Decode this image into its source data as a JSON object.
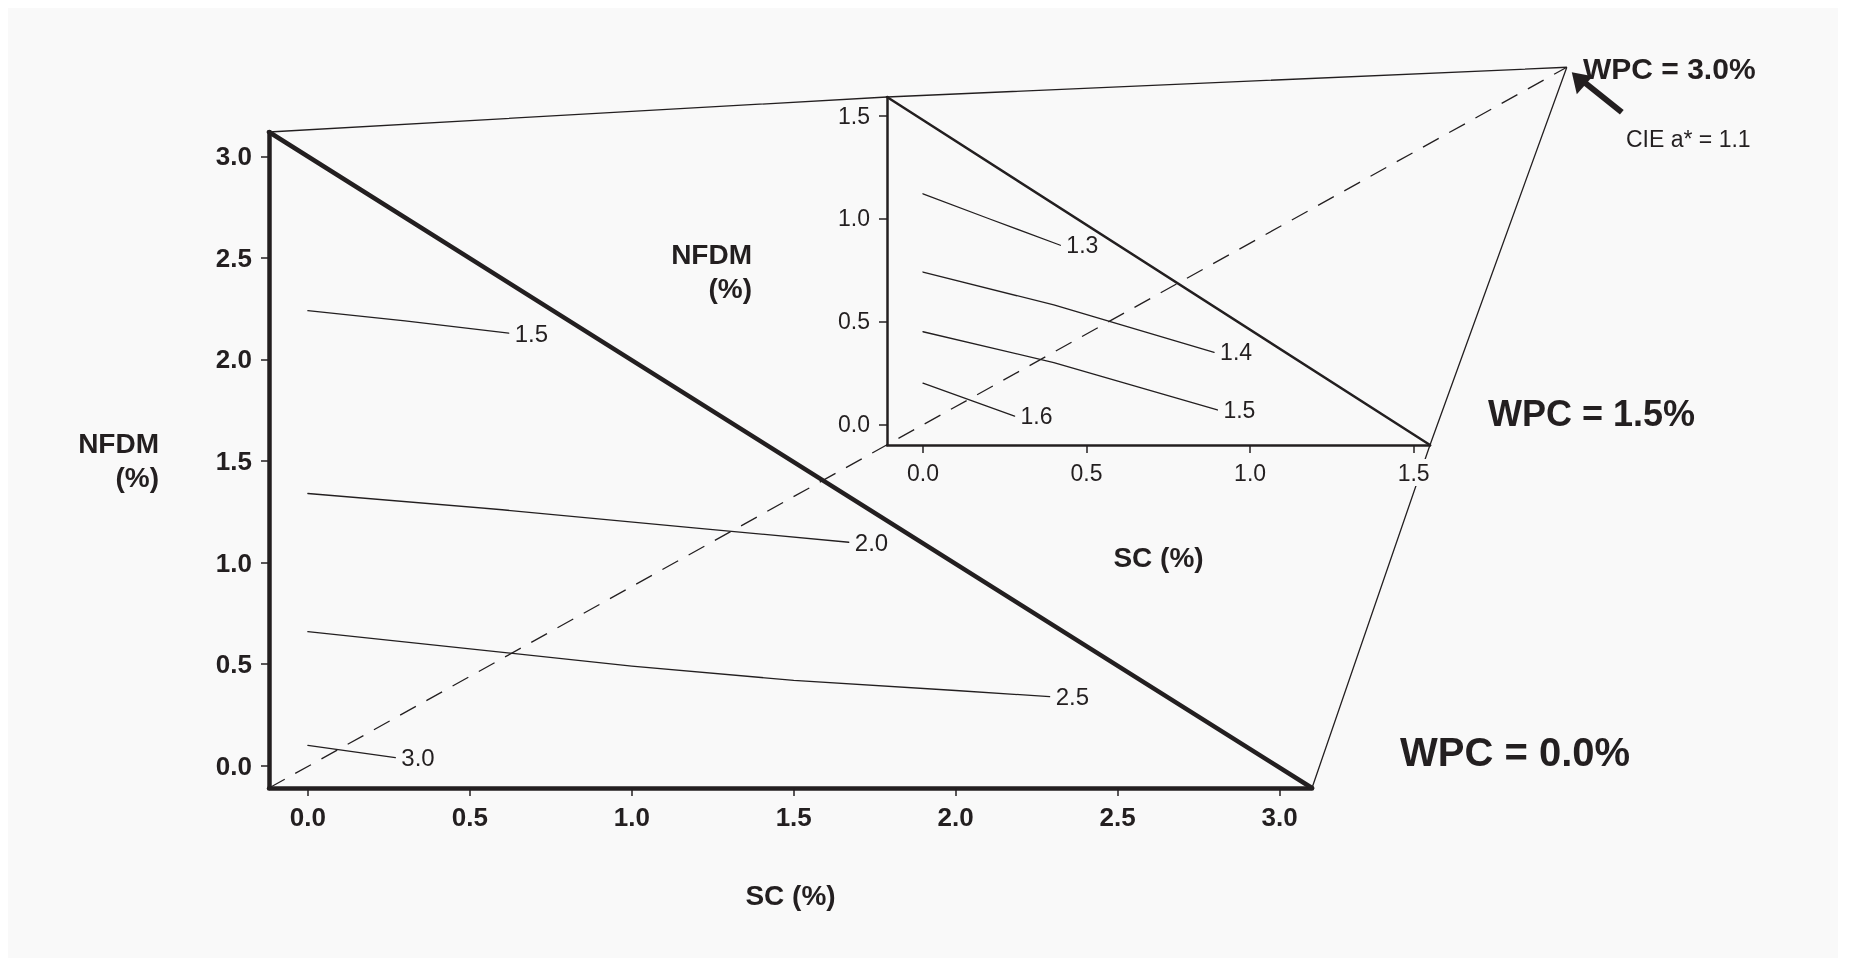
{
  "chart_data": [
    {
      "type": "line",
      "xlabel": "SC (%)",
      "ylabel": "NFDM (%)",
      "xlim": [
        -0.12,
        3.1
      ],
      "ylim": [
        -0.11,
        3.12
      ],
      "xticks": [
        {
          "value": 0,
          "label": "0.0"
        },
        0.5,
        {
          "value": 1,
          "label": "1.0"
        },
        1.5,
        {
          "value": 2,
          "label": "2.0"
        },
        2.5,
        {
          "value": 3,
          "label": "3.0"
        }
      ],
      "yticks": [
        {
          "value": 0,
          "label": "0.0"
        },
        0.5,
        {
          "value": 1,
          "label": "1.0"
        },
        1.5,
        {
          "value": 2,
          "label": "2.0"
        },
        2.5,
        {
          "value": 3,
          "label": "3.0"
        }
      ],
      "grid": false,
      "legend": false,
      "marker": "none",
      "line_style": "solid",
      "series": [
        {
          "color": "#231f20",
          "x": [
            -0.12,
            3.1
          ],
          "values": [
            3.12,
            -0.11
          ]
        },
        {
          "name": "1.5",
          "color": "#231f20",
          "x": [
            0,
            0.3,
            0.62
          ],
          "values": [
            2.24,
            2.19,
            2.13
          ]
        },
        {
          "name": "2.0",
          "color": "#231f20",
          "x": [
            0,
            0.6,
            1.2,
            1.67
          ],
          "values": [
            1.34,
            1.26,
            1.17,
            1.1
          ]
        },
        {
          "name": "2.5",
          "color": "#231f20",
          "x": [
            0,
            1,
            1.5,
            2,
            2.29
          ],
          "values": [
            0.66,
            0.49,
            0.42,
            0.37,
            0.34
          ]
        },
        {
          "name": "3.0",
          "color": "#231f20",
          "x": [
            0,
            0.27
          ],
          "values": [
            0.1,
            0.04
          ]
        }
      ],
      "annotations": [
        "WPC = 0.0%"
      ]
    },
    {
      "type": "line",
      "xlabel": "SC (%)",
      "ylabel": "NFDM (%)",
      "xlim": [
        -0.11,
        1.55
      ],
      "ylim": [
        -0.1,
        1.59
      ],
      "xticks": [
        {
          "value": 0,
          "label": "0.0"
        },
        0.5,
        {
          "value": 1,
          "label": "1.0"
        },
        1.5
      ],
      "yticks": [
        {
          "value": 0,
          "label": "0.0"
        },
        0.5,
        {
          "value": 1,
          "label": "1.0"
        },
        1.5
      ],
      "grid": false,
      "legend": false,
      "marker": "none",
      "line_style": "solid",
      "series": [
        {
          "color": "#231f20",
          "x": [
            -0.11,
            1.55
          ],
          "values": [
            1.59,
            -0.1
          ]
        },
        {
          "name": "1.3",
          "color": "#231f20",
          "x": [
            0,
            0.2,
            0.42
          ],
          "values": [
            1.12,
            1.0,
            0.87
          ]
        },
        {
          "name": "1.4",
          "color": "#231f20",
          "x": [
            0,
            0.4,
            0.89
          ],
          "values": [
            0.74,
            0.58,
            0.35
          ]
        },
        {
          "name": "1.5",
          "color": "#231f20",
          "x": [
            0,
            0.4,
            0.9
          ],
          "values": [
            0.45,
            0.3,
            0.07
          ]
        },
        {
          "name": "1.6",
          "color": "#231f20",
          "x": [
            0,
            0.28
          ],
          "values": [
            0.2,
            0.04
          ]
        }
      ],
      "annotations": [
        "WPC = 1.5%",
        "WPC = 3.0%",
        "CIE a* = 1.1"
      ]
    }
  ]
}
